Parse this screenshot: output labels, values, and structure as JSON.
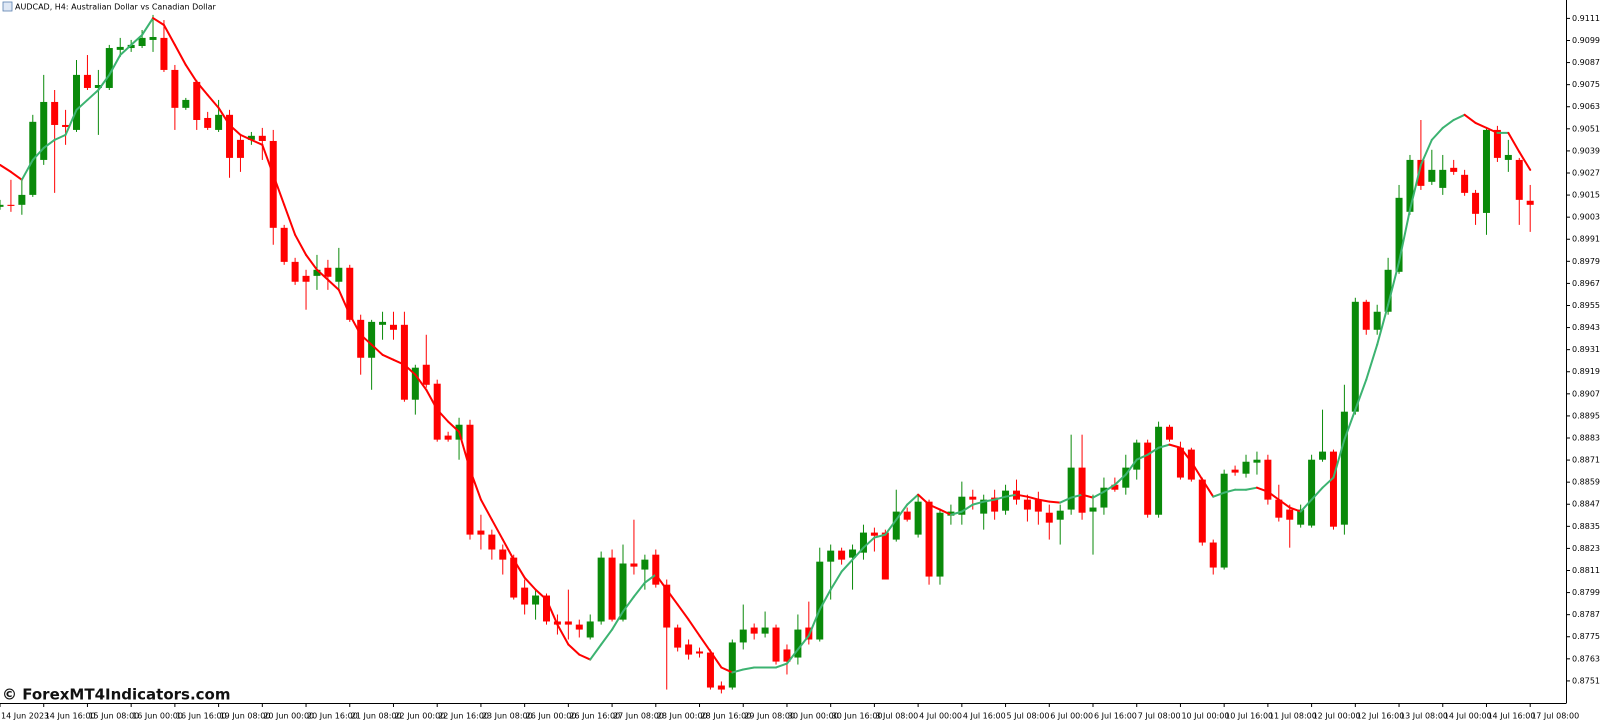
{
  "chart_data": {
    "type": "candlestick",
    "title": "AUDCAD, H4:  Australian Dollar vs Canadian Dollar",
    "watermark": "© ForexMT4Indicators.com",
    "up_color": "#0a8a0a",
    "down_color": "#ff0000",
    "ylim": [
      0.8739,
      0.9121
    ],
    "yticks": [
      {
        "value": 0.9111,
        "label": "0.91110"
      },
      {
        "value": 0.9099,
        "label": "0.90990"
      },
      {
        "value": 0.9087,
        "label": "0.90870"
      },
      {
        "value": 0.9075,
        "label": "0.90750"
      },
      {
        "value": 0.9063,
        "label": "0.90630"
      },
      {
        "value": 0.9051,
        "label": "0.90510"
      },
      {
        "value": 0.9039,
        "label": "0.90390"
      },
      {
        "value": 0.9027,
        "label": "0.90270"
      },
      {
        "value": 0.9015,
        "label": "0.90150"
      },
      {
        "value": 0.9003,
        "label": "0.90030"
      },
      {
        "value": 0.8991,
        "label": "0.89910"
      },
      {
        "value": 0.8979,
        "label": "0.89790"
      },
      {
        "value": 0.8967,
        "label": "0.89670"
      },
      {
        "value": 0.8955,
        "label": "0.89550"
      },
      {
        "value": 0.8943,
        "label": "0.89430"
      },
      {
        "value": 0.8931,
        "label": "0.89310"
      },
      {
        "value": 0.8919,
        "label": "0.89190"
      },
      {
        "value": 0.8907,
        "label": "0.89070"
      },
      {
        "value": 0.8895,
        "label": "0.88950"
      },
      {
        "value": 0.8883,
        "label": "0.88830"
      },
      {
        "value": 0.8871,
        "label": "0.88710"
      },
      {
        "value": 0.8859,
        "label": "0.88590"
      },
      {
        "value": 0.8847,
        "label": "0.88470"
      },
      {
        "value": 0.8835,
        "label": "0.88350"
      },
      {
        "value": 0.8823,
        "label": "0.88230"
      },
      {
        "value": 0.8811,
        "label": "0.88110"
      },
      {
        "value": 0.8799,
        "label": "0.87990"
      },
      {
        "value": 0.8787,
        "label": "0.87870"
      },
      {
        "value": 0.8775,
        "label": "0.87750"
      },
      {
        "value": 0.8763,
        "label": "0.87630"
      },
      {
        "value": 0.8751,
        "label": "0.87510"
      }
    ],
    "categories": [
      "14 Jun 2023",
      null,
      null,
      null,
      "14 Jun 16:00",
      null,
      null,
      null,
      "15 Jun 08:00",
      null,
      null,
      null,
      "16 Jun 00:00",
      null,
      null,
      null,
      "16 Jun 16:00",
      null,
      null,
      null,
      "19 Jun 08:00",
      null,
      null,
      null,
      "20 Jun 00:00",
      null,
      null,
      null,
      "20 Jun 16:00",
      null,
      null,
      null,
      "21 Jun 08:00",
      null,
      null,
      null,
      "22 Jun 00:00",
      null,
      null,
      null,
      "22 Jun 16:00",
      null,
      null,
      null,
      "23 Jun 08:00",
      null,
      null,
      null,
      "26 Jun 00:00",
      null,
      null,
      null,
      "26 Jun 16:00",
      null,
      null,
      null,
      "27 Jun 08:00",
      null,
      null,
      null,
      "28 Jun 00:00",
      null,
      null,
      null,
      "28 Jun 16:00",
      null,
      null,
      null,
      "29 Jun 08:00",
      null,
      null,
      null,
      "30 Jun 00:00",
      null,
      null,
      null,
      "30 Jun 16:00",
      null,
      null,
      null,
      "3 Jul 08:00",
      null,
      null,
      null,
      "4 Jul 00:00",
      null,
      null,
      null,
      "4 Jul 16:00",
      null,
      null,
      null,
      "5 Jul 08:00",
      null,
      null,
      null,
      "6 Jul 00:00",
      null,
      null,
      null,
      "6 Jul 16:00",
      null,
      null,
      null,
      "7 Jul 08:00",
      null,
      null,
      null,
      "10 Jul 00:00",
      null,
      null,
      null,
      "10 Jul 16:00",
      null,
      null,
      null,
      "11 Jul 08:00",
      null,
      null,
      null,
      "12 Jul 00:00",
      null,
      null,
      null,
      "12 Jul 16:00",
      null,
      null,
      null,
      "13 Jul 08:00",
      null,
      null,
      null,
      "14 Jul 00:00",
      null,
      null,
      null,
      "14 Jul 16:00",
      null,
      null,
      null,
      "17 Jul 08:00"
    ],
    "open": [
      0.90086,
      0.90097,
      0.90097,
      0.90151,
      0.90341,
      0.90656,
      0.90531,
      0.90504,
      0.90803,
      0.90732,
      0.90732,
      0.90939,
      0.90949,
      0.9096,
      0.90993,
      0.91004,
      0.9083,
      0.90624,
      0.90765,
      0.90569,
      0.90504,
      0.90586,
      0.9045,
      0.9045,
      0.90472,
      0.90444,
      0.89972,
      0.89787,
      0.89711,
      0.89711,
      0.89755,
      0.89679,
      0.89755,
      0.89472,
      0.89266,
      0.89445,
      0.89445,
      0.89445,
      0.89038,
      0.89228,
      0.89125,
      0.88843,
      0.88821,
      0.88902,
      0.88327,
      0.88305,
      0.88224,
      0.8818,
      0.88017,
      0.87925,
      0.87974,
      0.87833,
      0.87833,
      0.87816,
      0.87746,
      0.87833,
      0.8818,
      0.87843,
      0.88148,
      0.88115,
      0.88196,
      0.88033,
      0.878,
      0.87708,
      0.8767,
      0.87664,
      0.87485,
      0.87474,
      0.87719,
      0.878,
      0.87767,
      0.878,
      0.87681,
      0.87637,
      0.878,
      0.87735,
      0.88158,
      0.88218,
      0.8818,
      0.88207,
      0.88316,
      0.88316,
      0.88278,
      0.8843,
      0.88305,
      0.88484,
      0.88077,
      0.88408,
      0.88413,
      0.88511,
      0.88419,
      0.88506,
      0.88435,
      0.88544,
      0.88495,
      0.88495,
      0.88424,
      0.88386,
      0.88441,
      0.88669,
      0.8843,
      0.88452,
      0.88576,
      0.8856,
      0.88658,
      0.88805,
      0.88413,
      0.88891,
      0.88777,
      0.88767,
      0.88604,
      0.88262,
      0.88126,
      0.88658,
      0.88636,
      0.88696,
      0.88712,
      0.88495,
      0.88441,
      0.88359,
      0.88354,
      0.88712,
      0.88756,
      0.88359,
      0.88973,
      0.8957,
      0.89418,
      0.89516,
      0.89733,
      0.90059,
      0.90341,
      0.90222,
      0.90189,
      0.90298,
      0.9026,
      0.90162,
      0.90053,
      0.90504,
      0.90341,
      0.90341,
      0.90119
    ],
    "high": [
      0.90124,
      0.90233,
      0.90233,
      0.90586,
      0.90803,
      0.90721,
      0.90613,
      0.90884,
      0.90911,
      0.9083,
      0.90966,
      0.91004,
      0.90993,
      0.91047,
      0.91129,
      0.91101,
      0.90857,
      0.90678,
      0.90776,
      0.90602,
      0.90667,
      0.90613,
      0.90477,
      0.90493,
      0.90515,
      0.90504,
      0.89988,
      0.89809,
      0.89744,
      0.89825,
      0.89798,
      0.89863,
      0.89771,
      0.895,
      0.89472,
      0.89516,
      0.89516,
      0.89516,
      0.89228,
      0.89391,
      0.89147,
      0.88864,
      0.8894,
      0.88929,
      0.88413,
      0.88332,
      0.88251,
      0.88196,
      0.88061,
      0.88006,
      0.87985,
      0.87871,
      0.88006,
      0.87843,
      0.87871,
      0.88213,
      0.88224,
      0.88251,
      0.88386,
      0.88196,
      0.88224,
      0.88061,
      0.87816,
      0.87735,
      0.87691,
      0.87681,
      0.87507,
      0.87735,
      0.87925,
      0.87822,
      0.87887,
      0.87816,
      0.87708,
      0.87871,
      0.87941,
      0.88234,
      0.88251,
      0.88234,
      0.88251,
      0.88359,
      0.88343,
      0.88332,
      0.88549,
      0.88452,
      0.88522,
      0.88495,
      0.88441,
      0.88468,
      0.88593,
      0.88549,
      0.88522,
      0.88549,
      0.88576,
      0.88604,
      0.88522,
      0.88538,
      0.88468,
      0.88468,
      0.88848,
      0.88848,
      0.88522,
      0.88615,
      0.88615,
      0.88739,
      0.88821,
      0.88821,
      0.88919,
      0.88902,
      0.8881,
      0.88777,
      0.88615,
      0.88278,
      0.88658,
      0.8868,
      0.88739,
      0.88756,
      0.88739,
      0.88576,
      0.88468,
      0.88468,
      0.88739,
      0.88984,
      0.88767,
      0.89119,
      0.89592,
      0.89581,
      0.89554,
      0.89809,
      0.90205,
      0.90368,
      0.90558,
      0.90396,
      0.90368,
      0.90341,
      0.90287,
      0.90178,
      0.90515,
      0.90526,
      0.9045,
      0.90352,
      0.90205
    ],
    "low": [
      0.9007,
      0.90059,
      0.90043,
      0.9014,
      0.90314,
      0.90162,
      0.90423,
      0.90493,
      0.90721,
      0.90477,
      0.90721,
      0.909,
      0.90928,
      0.90949,
      0.90928,
      0.90819,
      0.90504,
      0.90613,
      0.90504,
      0.90504,
      0.90493,
      0.90244,
      0.90276,
      0.90423,
      0.90341,
      0.8988,
      0.89771,
      0.89662,
      0.89527,
      0.89635,
      0.89635,
      0.89635,
      0.89461,
      0.89174,
      0.89092,
      0.89364,
      0.89364,
      0.89027,
      0.88957,
      0.89103,
      0.8881,
      0.8881,
      0.88712,
      0.88278,
      0.88224,
      0.88169,
      0.88088,
      0.87952,
      0.87871,
      0.87843,
      0.87816,
      0.87762,
      0.87735,
      0.87746,
      0.87735,
      0.87816,
      0.87833,
      0.87833,
      0.88088,
      0.88006,
      0.88017,
      0.87463,
      0.8767,
      0.87626,
      0.87637,
      0.87463,
      0.87442,
      0.87463,
      0.87681,
      0.87735,
      0.87746,
      0.87599,
      0.87545,
      0.87599,
      0.87708,
      0.87724,
      0.87952,
      0.88142,
      0.88006,
      0.88169,
      0.88213,
      0.88061,
      0.88267,
      0.88376,
      0.88289,
      0.88033,
      0.88033,
      0.88359,
      0.88359,
      0.88441,
      0.88332,
      0.88386,
      0.88413,
      0.88468,
      0.88376,
      0.88359,
      0.88278,
      0.88251,
      0.88413,
      0.88386,
      0.88196,
      0.88413,
      0.88538,
      0.88522,
      0.88604,
      0.88397,
      0.88397,
      0.8881,
      0.88604,
      0.88593,
      0.88245,
      0.88088,
      0.88115,
      0.88625,
      0.88615,
      0.88631,
      0.88468,
      0.88376,
      0.88234,
      0.88343,
      0.88343,
      0.88701,
      0.88332,
      0.88305,
      0.88957,
      0.89391,
      0.89391,
      0.895,
      0.89722,
      0.90043,
      0.90178,
      0.90205,
      0.90151,
      0.9026,
      0.90146,
      0.89988,
      0.89934,
      0.9033,
      0.90276,
      0.89988,
      0.8995
    ],
    "close": [
      0.90097,
      0.90091,
      0.90151,
      0.90548,
      0.90656,
      0.90531,
      0.9052,
      0.90803,
      0.90732,
      0.90748,
      0.90949,
      0.90955,
      0.90966,
      0.91004,
      0.91009,
      0.9083,
      0.90624,
      0.90667,
      0.90558,
      0.90515,
      0.90586,
      0.90352,
      0.90352,
      0.90472,
      0.90444,
      0.89972,
      0.89787,
      0.89679,
      0.89679,
      0.89744,
      0.89706,
      0.89755,
      0.89472,
      0.89266,
      0.89461,
      0.89461,
      0.89418,
      0.89038,
      0.89212,
      0.89119,
      0.88821,
      0.88821,
      0.88902,
      0.88305,
      0.88305,
      0.88224,
      0.88169,
      0.87963,
      0.87925,
      0.87974,
      0.87833,
      0.87816,
      0.87816,
      0.87789,
      0.87833,
      0.8818,
      0.87843,
      0.88148,
      0.88131,
      0.88169,
      0.88033,
      0.878,
      0.87691,
      0.87653,
      0.87659,
      0.87474,
      0.87463,
      0.87719,
      0.87789,
      0.87767,
      0.878,
      0.87615,
      0.87615,
      0.87789,
      0.87735,
      0.88158,
      0.88218,
      0.88169,
      0.88224,
      0.88316,
      0.88299,
      0.88061,
      0.8843,
      0.88386,
      0.88484,
      0.88077,
      0.88424,
      0.8843,
      0.88511,
      0.88495,
      0.88495,
      0.8843,
      0.88544,
      0.88495,
      0.88441,
      0.8843,
      0.8837,
      0.88435,
      0.88669,
      0.88424,
      0.88452,
      0.8856,
      0.88549,
      0.88669,
      0.88805,
      0.88413,
      0.88891,
      0.88821,
      0.88615,
      0.88604,
      0.88262,
      0.88126,
      0.88636,
      0.88642,
      0.88701,
      0.88712,
      0.88495,
      0.88397,
      0.88386,
      0.88441,
      0.88712,
      0.88756,
      0.88348,
      0.88973,
      0.8957,
      0.89418,
      0.89516,
      0.89744,
      0.90135,
      0.90341,
      0.902,
      0.90287,
      0.90287,
      0.90276,
      0.90162,
      0.90048,
      0.90504,
      0.90352,
      0.90368,
      0.90124,
      0.90097
    ],
    "ma": {
      "up_color": "#3cb371",
      "down_color": "#ff0000",
      "values": [
        0.90314,
        0.90276,
        0.90233,
        0.90341,
        0.90406,
        0.9045,
        0.90477,
        0.90613,
        0.90667,
        0.90721,
        0.90803,
        0.90911,
        0.90966,
        0.9102,
        0.91112,
        0.91074,
        0.90966,
        0.90857,
        0.90765,
        0.90694,
        0.90624,
        0.90531,
        0.90477,
        0.9045,
        0.90423,
        0.9026,
        0.90097,
        0.89934,
        0.89825,
        0.89744,
        0.8969,
        0.89635,
        0.895,
        0.89391,
        0.89337,
        0.89282,
        0.89255,
        0.89228,
        0.89174,
        0.89092,
        0.88984,
        0.88919,
        0.88864,
        0.88658,
        0.88495,
        0.88386,
        0.88278,
        0.88169,
        0.88071,
        0.88006,
        0.87952,
        0.87816,
        0.87708,
        0.87653,
        0.87626,
        0.87708,
        0.87789,
        0.87887,
        0.87968,
        0.88044,
        0.88088,
        0.88006,
        0.87925,
        0.87843,
        0.87756,
        0.8767,
        0.87583,
        0.87556,
        0.87572,
        0.87583,
        0.87583,
        0.87583,
        0.87604,
        0.87681,
        0.87756,
        0.87898,
        0.88006,
        0.88104,
        0.88169,
        0.88234,
        0.88289,
        0.88305,
        0.88386,
        0.88468,
        0.88522,
        0.88468,
        0.88441,
        0.88413,
        0.8843,
        0.88468,
        0.88484,
        0.88495,
        0.88511,
        0.88522,
        0.88511,
        0.88495,
        0.88484,
        0.88479,
        0.88506,
        0.88522,
        0.88506,
        0.88538,
        0.88576,
        0.88631,
        0.88712,
        0.88739,
        0.88777,
        0.88794,
        0.88777,
        0.88701,
        0.88604,
        0.88511,
        0.88533,
        0.88549,
        0.88549,
        0.8856,
        0.88538,
        0.88495,
        0.88452,
        0.8843,
        0.88495,
        0.8856,
        0.88615,
        0.88821,
        0.88984,
        0.89147,
        0.89337,
        0.89554,
        0.89787,
        0.9007,
        0.90314,
        0.9045,
        0.90515,
        0.90558,
        0.90586,
        0.90542,
        0.90515,
        0.90488,
        0.90488,
        0.90385,
        0.90287
      ]
    }
  }
}
